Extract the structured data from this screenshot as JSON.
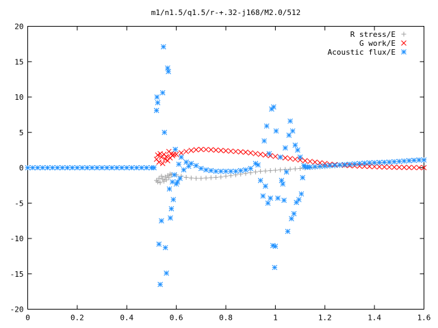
{
  "chart_data": {
    "type": "scatter",
    "title": "m1/n1.5/q1.5/r-+.32-j168/M2.0/512",
    "xlabel": "",
    "ylabel": "",
    "xlim": [
      0,
      1.6
    ],
    "ylim": [
      -20,
      20
    ],
    "xticks": [
      0,
      0.2,
      0.4,
      0.6,
      0.8,
      1,
      1.2,
      1.4,
      1.6
    ],
    "xtick_labels": [
      "0",
      "0.2",
      "0.4",
      "0.6",
      "0.8",
      "1",
      "1.2",
      "1.4",
      "1.6"
    ],
    "yticks": [
      -20,
      -15,
      -10,
      -5,
      0,
      5,
      10,
      15,
      20
    ],
    "ytick_labels": [
      "-20",
      "-15",
      "-10",
      "-5",
      "0",
      "5",
      "10",
      "15",
      "20"
    ],
    "grid": false,
    "legend_position": "top-right",
    "series": [
      {
        "name": "R stress/E",
        "marker": "plus",
        "color": "#a0a0a0",
        "points": [
          [
            0.52,
            -1.8
          ],
          [
            0.525,
            -2.0
          ],
          [
            0.53,
            -1.5
          ],
          [
            0.535,
            -2.1
          ],
          [
            0.54,
            -1.2
          ],
          [
            0.545,
            -1.6
          ],
          [
            0.55,
            -1.9
          ],
          [
            0.555,
            -1.3
          ],
          [
            0.56,
            -1.7
          ],
          [
            0.565,
            -1.1
          ],
          [
            0.57,
            -1.4
          ],
          [
            0.575,
            -0.9
          ],
          [
            0.58,
            -1.0
          ],
          [
            0.6,
            -1.0
          ],
          [
            0.62,
            -1.2
          ],
          [
            0.64,
            -1.35
          ],
          [
            0.66,
            -1.45
          ],
          [
            0.68,
            -1.5
          ],
          [
            0.7,
            -1.5
          ],
          [
            0.72,
            -1.45
          ],
          [
            0.74,
            -1.4
          ],
          [
            0.76,
            -1.35
          ],
          [
            0.78,
            -1.3
          ],
          [
            0.8,
            -1.2
          ],
          [
            0.82,
            -1.1
          ],
          [
            0.84,
            -1.0
          ],
          [
            0.86,
            -0.9
          ],
          [
            0.88,
            -0.8
          ],
          [
            0.9,
            -0.7
          ],
          [
            0.92,
            -0.6
          ],
          [
            0.94,
            -0.5
          ],
          [
            0.96,
            -0.45
          ],
          [
            0.98,
            -0.4
          ],
          [
            1.0,
            -0.35
          ],
          [
            1.02,
            -0.3
          ],
          [
            1.04,
            -0.25
          ],
          [
            1.06,
            -0.2
          ],
          [
            1.08,
            -0.15
          ],
          [
            1.1,
            -0.1
          ],
          [
            1.12,
            -0.05
          ],
          [
            1.14,
            0.0
          ],
          [
            1.16,
            0.05
          ],
          [
            1.18,
            0.1
          ],
          [
            1.2,
            0.15
          ],
          [
            1.22,
            0.2
          ],
          [
            1.24,
            0.25
          ],
          [
            1.26,
            0.3
          ],
          [
            1.28,
            0.35
          ],
          [
            1.3,
            0.4
          ],
          [
            1.32,
            0.45
          ],
          [
            1.34,
            0.5
          ],
          [
            1.36,
            0.55
          ],
          [
            1.38,
            0.6
          ],
          [
            1.4,
            0.65
          ],
          [
            1.42,
            0.7
          ],
          [
            1.44,
            0.75
          ],
          [
            1.46,
            0.8
          ],
          [
            1.48,
            0.85
          ],
          [
            1.5,
            0.9
          ],
          [
            1.52,
            0.95
          ],
          [
            1.54,
            1.0
          ],
          [
            1.56,
            1.05
          ],
          [
            1.58,
            1.1
          ],
          [
            1.6,
            1.15
          ]
        ]
      },
      {
        "name": "G work/E",
        "marker": "cross",
        "color": "#ff0000",
        "points": [
          [
            0.52,
            1.2
          ],
          [
            0.525,
            1.8
          ],
          [
            0.53,
            0.8
          ],
          [
            0.535,
            2.0
          ],
          [
            0.54,
            1.5
          ],
          [
            0.545,
            0.6
          ],
          [
            0.55,
            1.9
          ],
          [
            0.555,
            1.2
          ],
          [
            0.56,
            1.6
          ],
          [
            0.565,
            1.0
          ],
          [
            0.57,
            2.3
          ],
          [
            0.575,
            1.4
          ],
          [
            0.58,
            2.0
          ],
          [
            0.585,
            1.7
          ],
          [
            0.59,
            1.9
          ],
          [
            0.6,
            1.9
          ],
          [
            0.62,
            2.1
          ],
          [
            0.64,
            2.3
          ],
          [
            0.66,
            2.45
          ],
          [
            0.68,
            2.55
          ],
          [
            0.7,
            2.6
          ],
          [
            0.72,
            2.58
          ],
          [
            0.74,
            2.55
          ],
          [
            0.76,
            2.5
          ],
          [
            0.78,
            2.45
          ],
          [
            0.8,
            2.4
          ],
          [
            0.82,
            2.35
          ],
          [
            0.84,
            2.3
          ],
          [
            0.86,
            2.25
          ],
          [
            0.88,
            2.2
          ],
          [
            0.9,
            2.1
          ],
          [
            0.92,
            2.0
          ],
          [
            0.94,
            1.9
          ],
          [
            0.96,
            1.8
          ],
          [
            0.98,
            1.7
          ],
          [
            1.0,
            1.6
          ],
          [
            1.02,
            1.5
          ],
          [
            1.04,
            1.4
          ],
          [
            1.06,
            1.3
          ],
          [
            1.08,
            1.2
          ],
          [
            1.1,
            1.1
          ],
          [
            1.12,
            1.0
          ],
          [
            1.14,
            0.9
          ],
          [
            1.16,
            0.8
          ],
          [
            1.18,
            0.7
          ],
          [
            1.2,
            0.6
          ],
          [
            1.22,
            0.5
          ],
          [
            1.24,
            0.45
          ],
          [
            1.26,
            0.4
          ],
          [
            1.28,
            0.35
          ],
          [
            1.3,
            0.3
          ],
          [
            1.32,
            0.27
          ],
          [
            1.34,
            0.24
          ],
          [
            1.36,
            0.21
          ],
          [
            1.38,
            0.18
          ],
          [
            1.4,
            0.15
          ],
          [
            1.42,
            0.13
          ],
          [
            1.44,
            0.11
          ],
          [
            1.46,
            0.09
          ],
          [
            1.48,
            0.07
          ],
          [
            1.5,
            0.06
          ],
          [
            1.52,
            0.05
          ],
          [
            1.54,
            0.04
          ],
          [
            1.56,
            0.03
          ],
          [
            1.58,
            0.02
          ],
          [
            1.6,
            0.01
          ]
        ]
      },
      {
        "name": "Acoustic flux/E",
        "marker": "star",
        "color": "#1e90ff",
        "points": [
          [
            0.0,
            0
          ],
          [
            0.02,
            0
          ],
          [
            0.04,
            0
          ],
          [
            0.06,
            0
          ],
          [
            0.08,
            0
          ],
          [
            0.1,
            0
          ],
          [
            0.12,
            0
          ],
          [
            0.14,
            0
          ],
          [
            0.16,
            0
          ],
          [
            0.18,
            0
          ],
          [
            0.2,
            0
          ],
          [
            0.22,
            0
          ],
          [
            0.24,
            0
          ],
          [
            0.26,
            0
          ],
          [
            0.28,
            0
          ],
          [
            0.3,
            0
          ],
          [
            0.32,
            0
          ],
          [
            0.34,
            0
          ],
          [
            0.36,
            0
          ],
          [
            0.38,
            0
          ],
          [
            0.4,
            0
          ],
          [
            0.42,
            0
          ],
          [
            0.44,
            0
          ],
          [
            0.46,
            0
          ],
          [
            0.48,
            0
          ],
          [
            0.5,
            0
          ],
          [
            0.51,
            0
          ],
          [
            0.52,
            8.1
          ],
          [
            0.522,
            10.0
          ],
          [
            0.525,
            9.2
          ],
          [
            0.53,
            -10.8
          ],
          [
            0.535,
            -16.5
          ],
          [
            0.54,
            -7.5
          ],
          [
            0.545,
            10.6
          ],
          [
            0.548,
            17.1
          ],
          [
            0.552,
            5.0
          ],
          [
            0.556,
            -11.3
          ],
          [
            0.56,
            -14.9
          ],
          [
            0.565,
            14.1
          ],
          [
            0.568,
            13.6
          ],
          [
            0.572,
            -3.0
          ],
          [
            0.576,
            -7.1
          ],
          [
            0.58,
            -5.8
          ],
          [
            0.584,
            -2.0
          ],
          [
            0.588,
            -4.5
          ],
          [
            0.592,
            -1.0
          ],
          [
            0.596,
            2.6
          ],
          [
            0.6,
            -2.3
          ],
          [
            0.605,
            -2.0
          ],
          [
            0.61,
            0.5
          ],
          [
            0.615,
            -1.5
          ],
          [
            0.62,
            1.5
          ],
          [
            0.63,
            -0.3
          ],
          [
            0.64,
            0.8
          ],
          [
            0.65,
            0.2
          ],
          [
            0.66,
            0.6
          ],
          [
            0.68,
            0.3
          ],
          [
            0.7,
            -0.1
          ],
          [
            0.72,
            -0.3
          ],
          [
            0.74,
            -0.4
          ],
          [
            0.76,
            -0.5
          ],
          [
            0.78,
            -0.5
          ],
          [
            0.8,
            -0.5
          ],
          [
            0.82,
            -0.5
          ],
          [
            0.84,
            -0.5
          ],
          [
            0.86,
            -0.4
          ],
          [
            0.88,
            -0.3
          ],
          [
            0.9,
            -0.1
          ],
          [
            0.92,
            0.6
          ],
          [
            0.93,
            0.4
          ],
          [
            0.94,
            -1.8
          ],
          [
            0.95,
            -4.0
          ],
          [
            0.955,
            3.8
          ],
          [
            0.96,
            -2.6
          ],
          [
            0.965,
            5.9
          ],
          [
            0.97,
            -5.0
          ],
          [
            0.975,
            2.0
          ],
          [
            0.98,
            -4.3
          ],
          [
            0.985,
            8.3
          ],
          [
            0.99,
            -11.0
          ],
          [
            0.993,
            8.6
          ],
          [
            0.997,
            -14.1
          ],
          [
            1.0,
            -11.1
          ],
          [
            1.003,
            5.2
          ],
          [
            1.01,
            -4.3
          ],
          [
            1.02,
            1.5
          ],
          [
            1.025,
            -1.8
          ],
          [
            1.03,
            -2.3
          ],
          [
            1.035,
            -4.6
          ],
          [
            1.04,
            2.8
          ],
          [
            1.045,
            -0.6
          ],
          [
            1.05,
            -9.0
          ],
          [
            1.055,
            4.6
          ],
          [
            1.06,
            6.6
          ],
          [
            1.065,
            -7.2
          ],
          [
            1.07,
            5.2
          ],
          [
            1.075,
            -6.5
          ],
          [
            1.08,
            3.2
          ],
          [
            1.085,
            -4.9
          ],
          [
            1.09,
            2.5
          ],
          [
            1.095,
            -4.5
          ],
          [
            1.1,
            1.5
          ],
          [
            1.105,
            -3.7
          ],
          [
            1.11,
            -1.4
          ],
          [
            1.115,
            0.3
          ],
          [
            1.12,
            0.1
          ],
          [
            1.13,
            0.1
          ],
          [
            1.14,
            0.1
          ],
          [
            1.16,
            0.15
          ],
          [
            1.18,
            0.2
          ],
          [
            1.2,
            0.25
          ],
          [
            1.22,
            0.3
          ],
          [
            1.24,
            0.35
          ],
          [
            1.26,
            0.4
          ],
          [
            1.28,
            0.45
          ],
          [
            1.3,
            0.5
          ],
          [
            1.32,
            0.55
          ],
          [
            1.34,
            0.6
          ],
          [
            1.36,
            0.65
          ],
          [
            1.38,
            0.7
          ],
          [
            1.4,
            0.72
          ],
          [
            1.42,
            0.75
          ],
          [
            1.44,
            0.78
          ],
          [
            1.46,
            0.8
          ],
          [
            1.48,
            0.85
          ],
          [
            1.5,
            0.9
          ],
          [
            1.52,
            0.95
          ],
          [
            1.54,
            1.0
          ],
          [
            1.56,
            1.05
          ],
          [
            1.58,
            1.1
          ],
          [
            1.6,
            1.1
          ]
        ]
      }
    ]
  }
}
